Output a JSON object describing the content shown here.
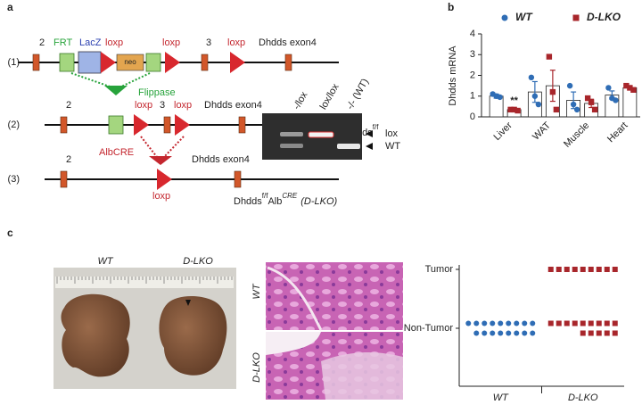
{
  "panel_labels": [
    "a",
    "b",
    "c"
  ],
  "diagram": {
    "row_labels": [
      "(1)",
      "(2)",
      "(3)"
    ],
    "construct1": {
      "exon2": "2",
      "frt": "FRT",
      "lacz": "LacZ",
      "loxp1": "loxp",
      "neo": "neo",
      "loxp2": "loxp",
      "exon3": "3",
      "loxp3": "loxp",
      "exon4": "Dhdds exon4"
    },
    "flippase": "Flippase",
    "construct2": {
      "exon2": "2",
      "loxp1": "loxp",
      "exon3": "3",
      "loxp2": "loxp",
      "exon4": "Dhdds exon4",
      "allele": "Dhdds",
      "allele_sup": "f/f"
    },
    "albcre": "AlbCRE",
    "construct3": {
      "exon2": "2",
      "exon4": "Dhdds exon4",
      "loxp": "loxp",
      "allele": "Dhdds",
      "allele_sup": "f/f",
      "driver": "Alb",
      "driver_sup": "CRE",
      "tag": "(D-LKO)"
    }
  },
  "gel": {
    "lanes": [
      "-/lox",
      "lox/lox",
      "-/- (WT)"
    ],
    "bands": [
      "lox",
      "WT"
    ]
  },
  "photo": {
    "labels": [
      "WT",
      "D-LKO"
    ]
  },
  "histology": {
    "labels": [
      "WT",
      "D-LKO"
    ]
  },
  "chart_data": [
    {
      "type": "bar",
      "ylabel": "Dhdds mRNA",
      "annotation": "**",
      "categories": [
        "Liver",
        "WAT",
        "Muscle",
        "Heart"
      ],
      "ylim": [
        0,
        4
      ],
      "yticks": [
        0,
        1,
        2,
        3,
        4
      ],
      "series": [
        {
          "name": "WT",
          "color": "#2f6db5",
          "marker": "circle",
          "values": [
            1.0,
            1.2,
            0.8,
            1.05
          ],
          "errors": [
            0.1,
            0.5,
            0.4,
            0.2
          ],
          "points": [
            [
              1.1,
              1.0,
              0.95
            ],
            [
              1.9,
              1.0,
              0.6
            ],
            [
              1.5,
              0.6,
              0.35
            ],
            [
              1.4,
              0.9,
              0.8
            ]
          ]
        },
        {
          "name": "D-LKO",
          "color": "#a8262b",
          "marker": "square",
          "values": [
            0.35,
            1.5,
            0.65,
            1.4
          ],
          "errors": [
            0.05,
            0.75,
            0.2,
            0.1
          ],
          "points": [
            [
              0.35,
              0.35,
              0.3
            ],
            [
              2.9,
              1.2,
              0.35
            ],
            [
              0.9,
              0.7,
              0.35
            ],
            [
              1.5,
              1.4,
              1.3
            ]
          ]
        }
      ]
    },
    {
      "type": "dot",
      "categories": [
        "WT",
        "D-LKO"
      ],
      "levels": [
        "Tumor",
        "Non-Tumor"
      ],
      "series": [
        {
          "color": "#2f6db5",
          "marker": "circle",
          "values": [
            0,
            17
          ]
        },
        {
          "color": "#a8262b",
          "marker": "square",
          "values": [
            9,
            14
          ]
        }
      ]
    }
  ]
}
